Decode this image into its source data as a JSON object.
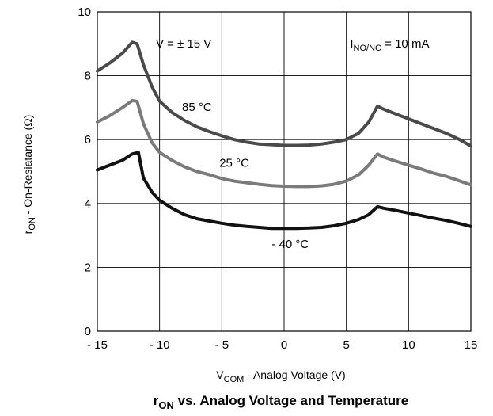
{
  "chart_data": {
    "type": "line",
    "title": {
      "main": "r",
      "sub": "ON",
      "rest": " vs. Analog Voltage and Temperature"
    },
    "xlabel": {
      "main": "V",
      "sub": "COM",
      "rest": "  -  Analog Voltage (V)"
    },
    "ylabel": {
      "main": "r",
      "sub": "ON",
      "rest": "  -  On-Resiatance (Ω)"
    },
    "xlim": [
      -15,
      15
    ],
    "ylim": [
      0,
      10
    ],
    "x_ticks": [
      -15,
      -10,
      -5,
      0,
      5,
      10,
      15
    ],
    "x_tick_labels": [
      "- 15",
      "- 10",
      "- 5",
      "0",
      "5",
      "10",
      "15"
    ],
    "y_ticks": [
      0,
      2,
      4,
      6,
      8,
      10
    ],
    "y_tick_labels": [
      "0",
      "2",
      "4",
      "6",
      "8",
      "10"
    ],
    "grid": true,
    "annotations": [
      {
        "id": "supply",
        "text": "V = ± 15 V",
        "x": -10.3,
        "y": 8.88
      },
      {
        "id": "current",
        "main": "I",
        "sub": "NO/NC",
        "rest": " = 10 mA",
        "x": 5.3,
        "y": 8.88
      }
    ],
    "series": [
      {
        "name": "85 °C",
        "color": "#4a4a4a",
        "label_x": -7,
        "label_y": 6.9,
        "points": [
          [
            -15,
            8.15
          ],
          [
            -14,
            8.4
          ],
          [
            -13,
            8.7
          ],
          [
            -12.2,
            9.05
          ],
          [
            -11.8,
            9.0
          ],
          [
            -11.3,
            8.35
          ],
          [
            -10.6,
            7.65
          ],
          [
            -10,
            7.2
          ],
          [
            -9,
            6.85
          ],
          [
            -8,
            6.6
          ],
          [
            -7,
            6.4
          ],
          [
            -6,
            6.25
          ],
          [
            -5,
            6.12
          ],
          [
            -4,
            6.0
          ],
          [
            -3,
            5.92
          ],
          [
            -2,
            5.86
          ],
          [
            -1,
            5.84
          ],
          [
            0,
            5.82
          ],
          [
            1,
            5.82
          ],
          [
            2,
            5.83
          ],
          [
            3,
            5.86
          ],
          [
            4,
            5.92
          ],
          [
            5,
            6.0
          ],
          [
            6,
            6.2
          ],
          [
            6.8,
            6.55
          ],
          [
            7.5,
            7.05
          ],
          [
            8,
            6.95
          ],
          [
            9,
            6.8
          ],
          [
            10,
            6.65
          ],
          [
            11,
            6.5
          ],
          [
            12,
            6.35
          ],
          [
            13,
            6.2
          ],
          [
            14,
            6.02
          ],
          [
            15,
            5.8
          ]
        ]
      },
      {
        "name": "25 °C",
        "color": "#7a7a7a",
        "label_x": -4,
        "label_y": 5.15,
        "points": [
          [
            -15,
            6.55
          ],
          [
            -14,
            6.75
          ],
          [
            -13,
            7.0
          ],
          [
            -12.2,
            7.22
          ],
          [
            -11.8,
            7.2
          ],
          [
            -11.3,
            6.5
          ],
          [
            -10.6,
            5.9
          ],
          [
            -10,
            5.6
          ],
          [
            -9,
            5.35
          ],
          [
            -8,
            5.15
          ],
          [
            -7,
            5.0
          ],
          [
            -6,
            4.9
          ],
          [
            -5,
            4.78
          ],
          [
            -4,
            4.7
          ],
          [
            -3,
            4.65
          ],
          [
            -2,
            4.6
          ],
          [
            -1,
            4.56
          ],
          [
            0,
            4.54
          ],
          [
            1,
            4.53
          ],
          [
            2,
            4.53
          ],
          [
            3,
            4.55
          ],
          [
            4,
            4.6
          ],
          [
            5,
            4.7
          ],
          [
            6,
            4.9
          ],
          [
            6.8,
            5.2
          ],
          [
            7.5,
            5.55
          ],
          [
            8,
            5.45
          ],
          [
            9,
            5.32
          ],
          [
            10,
            5.2
          ],
          [
            11,
            5.08
          ],
          [
            12,
            4.95
          ],
          [
            13,
            4.85
          ],
          [
            14,
            4.72
          ],
          [
            15,
            4.58
          ]
        ]
      },
      {
        "name": "- 40 °C",
        "color": "#111111",
        "label_x": 0.5,
        "label_y": 2.6,
        "points": [
          [
            -15,
            5.05
          ],
          [
            -14,
            5.2
          ],
          [
            -13,
            5.35
          ],
          [
            -12.2,
            5.55
          ],
          [
            -11.7,
            5.6
          ],
          [
            -11.3,
            4.8
          ],
          [
            -10.6,
            4.35
          ],
          [
            -10,
            4.1
          ],
          [
            -9,
            3.85
          ],
          [
            -8,
            3.65
          ],
          [
            -7,
            3.52
          ],
          [
            -6,
            3.45
          ],
          [
            -5,
            3.38
          ],
          [
            -4,
            3.32
          ],
          [
            -3,
            3.28
          ],
          [
            -2,
            3.25
          ],
          [
            -1,
            3.22
          ],
          [
            0,
            3.22
          ],
          [
            1,
            3.22
          ],
          [
            2,
            3.23
          ],
          [
            3,
            3.25
          ],
          [
            4,
            3.3
          ],
          [
            5,
            3.38
          ],
          [
            6,
            3.5
          ],
          [
            6.8,
            3.65
          ],
          [
            7.5,
            3.9
          ],
          [
            8,
            3.85
          ],
          [
            9,
            3.78
          ],
          [
            10,
            3.7
          ],
          [
            11,
            3.62
          ],
          [
            12,
            3.54
          ],
          [
            13,
            3.47
          ],
          [
            14,
            3.38
          ],
          [
            15,
            3.28
          ]
        ]
      }
    ]
  }
}
